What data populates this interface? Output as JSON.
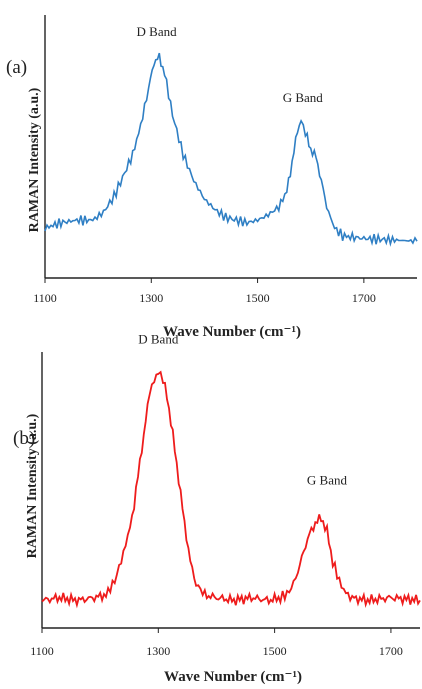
{
  "chart_data": [
    {
      "type": "line",
      "panel": "(a)",
      "xlabel": "Wave Number (cm⁻¹)",
      "ylabel": "RAMAN Intensity (a.u.)",
      "xlim": [
        1100,
        1800
      ],
      "ylim": [
        0,
        1.0
      ],
      "xticks": [
        1100,
        1300,
        1500,
        1700
      ],
      "color": "#2f7fc4",
      "series": [
        {
          "x": [
            1100,
            1130,
            1160,
            1190,
            1210,
            1230,
            1250,
            1265,
            1280,
            1295,
            1305,
            1315,
            1325,
            1340,
            1360,
            1380,
            1400,
            1420,
            1440,
            1460,
            1480,
            1500,
            1520,
            1540,
            1555,
            1565,
            1575,
            1582,
            1590,
            1600,
            1610,
            1620,
            1630,
            1645,
            1660,
            1700,
            1750,
            1800
          ],
          "y": [
            0.19,
            0.21,
            0.22,
            0.22,
            0.25,
            0.31,
            0.4,
            0.47,
            0.58,
            0.72,
            0.82,
            0.84,
            0.78,
            0.62,
            0.47,
            0.37,
            0.3,
            0.26,
            0.23,
            0.22,
            0.21,
            0.22,
            0.24,
            0.27,
            0.33,
            0.44,
            0.56,
            0.6,
            0.55,
            0.49,
            0.46,
            0.37,
            0.27,
            0.19,
            0.16,
            0.15,
            0.145,
            0.14
          ]
        }
      ],
      "annotations": [
        {
          "text": "D Band",
          "x": 1310,
          "y": 0.92
        },
        {
          "text": "G Band",
          "x": 1585,
          "y": 0.67
        }
      ]
    },
    {
      "type": "line",
      "panel": "(b)",
      "xlabel": "Wave Number (cm⁻¹)",
      "ylabel": "RAMAN Intensity (a.u.)",
      "xlim": [
        1100,
        1750
      ],
      "ylim": [
        0,
        1.0
      ],
      "xticks": [
        1100,
        1300,
        1500,
        1700
      ],
      "color": "#ee1c1c",
      "series": [
        {
          "x": [
            1100,
            1130,
            1160,
            1190,
            1210,
            1225,
            1240,
            1255,
            1265,
            1275,
            1285,
            1293,
            1300,
            1308,
            1315,
            1325,
            1335,
            1345,
            1355,
            1365,
            1380,
            1400,
            1430,
            1460,
            1490,
            1510,
            1525,
            1540,
            1550,
            1560,
            1570,
            1580,
            1590,
            1600,
            1615,
            1630,
            1660,
            1700,
            1750
          ],
          "y": [
            0.1,
            0.11,
            0.1,
            0.11,
            0.12,
            0.17,
            0.27,
            0.4,
            0.55,
            0.7,
            0.85,
            0.9,
            0.93,
            0.9,
            0.84,
            0.7,
            0.54,
            0.38,
            0.24,
            0.16,
            0.12,
            0.11,
            0.1,
            0.11,
            0.1,
            0.11,
            0.13,
            0.2,
            0.28,
            0.34,
            0.38,
            0.4,
            0.35,
            0.24,
            0.15,
            0.11,
            0.1,
            0.11,
            0.1
          ]
        }
      ],
      "annotations": [
        {
          "text": "D Band",
          "x": 1300,
          "y": 1.03
        },
        {
          "text": "G Band",
          "x": 1590,
          "y": 0.52
        }
      ]
    }
  ]
}
